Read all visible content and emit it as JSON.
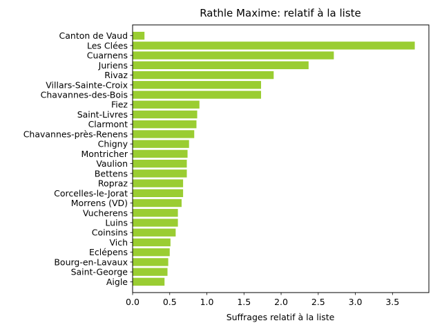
{
  "chart_data": {
    "type": "bar",
    "orientation": "horizontal",
    "title": "Rathle Maxime: relatif à la liste",
    "xlabel": "Suffrages relatif à la liste",
    "ylabel": "",
    "xlim": [
      0,
      3.99
    ],
    "xticks": [
      "0.0",
      "0.5",
      "1.0",
      "1.5",
      "2.0",
      "2.5",
      "3.0",
      "3.5"
    ],
    "bar_color": "#9acd32",
    "grid": false,
    "categories": [
      "Canton de Vaud",
      "Les Clées",
      "Cuarnens",
      "Juriens",
      "Rivaz",
      "Villars-Sainte-Croix",
      "Chavannes-des-Bois",
      "Fiez",
      "Saint-Livres",
      "Clarmont",
      "Chavannes-près-Renens",
      "Chigny",
      "Montricher",
      "Vaulion",
      "Bettens",
      "Ropraz",
      "Corcelles-le-Jorat",
      "Morrens (VD)",
      "Vucherens",
      "Luins",
      "Coinsins",
      "Vich",
      "Eclépens",
      "Bourg-en-Lavaux",
      "Saint-George",
      "Aigle"
    ],
    "values": [
      0.16,
      3.8,
      2.71,
      2.37,
      1.9,
      1.73,
      1.73,
      0.9,
      0.87,
      0.86,
      0.83,
      0.76,
      0.74,
      0.73,
      0.73,
      0.68,
      0.68,
      0.66,
      0.61,
      0.61,
      0.58,
      0.51,
      0.5,
      0.48,
      0.47,
      0.43
    ]
  }
}
